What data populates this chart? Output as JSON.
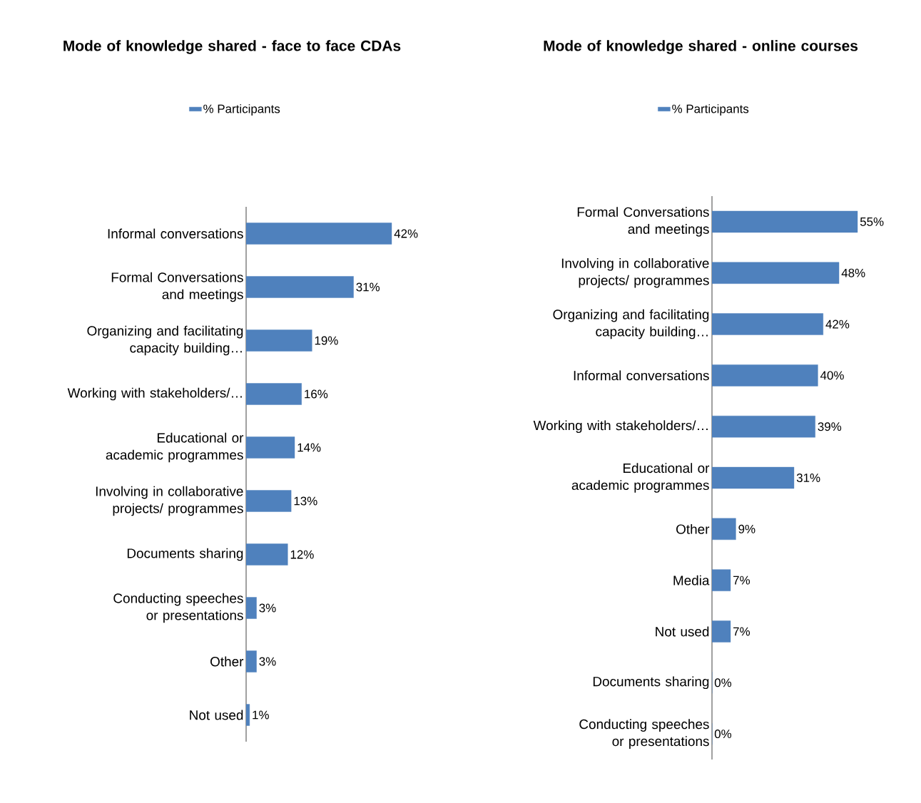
{
  "chart_data": [
    {
      "type": "bar",
      "orientation": "horizontal",
      "title": "Mode of knowledge shared - face to face CDAs",
      "legend": "top",
      "categories": [
        "Informal conversations",
        "Formal Conversations and meetings",
        "Organizing and facilitating capacity building…",
        "Working with stakeholders/…",
        "Educational or academic programmes",
        "Involving in collaborative projects/ programmes",
        "Documents sharing",
        "Conducting speeches or presentations",
        "Other",
        "Not used"
      ],
      "series": [
        {
          "name": "% Participants",
          "color": "#4f81bd",
          "values": [
            42,
            31,
            19,
            16,
            14,
            13,
            12,
            3,
            3,
            1
          ],
          "value_labels": [
            "42%",
            "31%",
            "19%",
            "16%",
            "14%",
            "13%",
            "12%",
            "3%",
            "3%",
            "1%"
          ]
        }
      ]
    },
    {
      "type": "bar",
      "orientation": "horizontal",
      "title": "Mode of knowledge shared - online courses",
      "legend": "top",
      "categories": [
        "Formal Conversations and meetings",
        "Involving in collaborative projects/ programmes",
        "Organizing and facilitating capacity building…",
        "Informal conversations",
        "Working with stakeholders/…",
        "Educational or academic programmes",
        "Other",
        "Media",
        "Not used",
        "Documents sharing",
        "Conducting speeches or presentations"
      ],
      "series": [
        {
          "name": "% Participants",
          "color": "#4f81bd",
          "values": [
            55,
            48,
            42,
            40,
            39,
            31,
            9,
            7,
            7,
            0,
            0
          ],
          "value_labels": [
            "55%",
            "48%",
            "42%",
            "40%",
            "39%",
            "31%",
            "9%",
            "7%",
            "7%",
            "0%",
            "0%"
          ]
        }
      ]
    }
  ]
}
